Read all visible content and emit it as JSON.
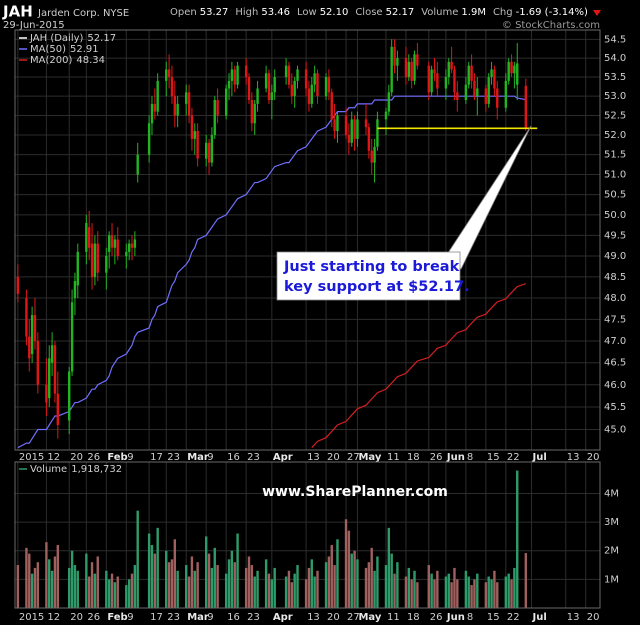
{
  "chart_data": {
    "type": "candlestick",
    "symbol": "JAH",
    "title": "Jarden Corp. NYSE",
    "date": "29-Jun-2015",
    "quote": [
      "Open",
      "53.27",
      "High",
      "53.46",
      "Low",
      "52.10",
      "Close",
      "52.17",
      "Volume",
      "1.9M",
      "Chg",
      "-1.69 (-3.14%)"
    ],
    "credit": "© StockCharts.com",
    "watermark": "www.SharePlanner.com",
    "price_label": "JAH (Daily)",
    "up_color": "#22b522",
    "down_color": "#e01616",
    "log_scale": true,
    "grid": true,
    "ylim": [
      44.55,
      54.75
    ],
    "yticks": [
      {
        "value": 45,
        "label": "45.0"
      },
      45.5,
      {
        "value": 46,
        "label": "46.0"
      },
      46.5,
      {
        "value": 47,
        "label": "47.0"
      },
      47.5,
      {
        "value": 48,
        "label": "48.0"
      },
      48.5,
      {
        "value": 49,
        "label": "49.0"
      },
      49.5,
      {
        "value": 50,
        "label": "50.0"
      },
      50.5,
      {
        "value": 51,
        "label": "51.0"
      },
      51.5,
      {
        "value": 52,
        "label": "52.0"
      },
      52.5,
      {
        "value": 53,
        "label": "53.0"
      },
      53.5,
      {
        "value": 54,
        "label": "54.0"
      },
      54.5
    ],
    "xlim": [
      "2015-01-01",
      "2015-07-25"
    ],
    "xticks": [
      {
        "value": "2015-01-02",
        "label": "2015"
      },
      {
        "value": "2015-01-12",
        "label": "12"
      },
      {
        "value": "2015-01-20",
        "label": "20"
      },
      {
        "value": "2015-01-26",
        "label": "26"
      },
      {
        "value": "2015-02-02",
        "label": "Feb"
      },
      {
        "value": "2015-02-09",
        "label": "9"
      },
      {
        "value": "2015-02-17",
        "label": "17"
      },
      {
        "value": "2015-02-23",
        "label": "23"
      },
      {
        "value": "2015-03-02",
        "label": "Mar"
      },
      {
        "value": "2015-03-09",
        "label": "9"
      },
      {
        "value": "2015-03-16",
        "label": "16"
      },
      {
        "value": "2015-03-23",
        "label": "23"
      },
      {
        "value": "2015-04-01",
        "label": "Apr"
      },
      {
        "value": "2015-04-13",
        "label": "13"
      },
      {
        "value": "2015-04-20",
        "label": "20"
      },
      {
        "value": "2015-04-27",
        "label": "27"
      },
      {
        "value": "2015-05-01",
        "label": "May"
      },
      {
        "value": "2015-05-11",
        "label": "11"
      },
      {
        "value": "2015-05-18",
        "label": "18"
      },
      {
        "value": "2015-05-26",
        "label": "26"
      },
      {
        "value": "2015-06-01",
        "label": "Jun"
      },
      {
        "value": "2015-06-08",
        "label": "8"
      },
      {
        "value": "2015-06-15",
        "label": "15"
      },
      {
        "value": "2015-06-22",
        "label": "22"
      },
      {
        "value": "2015-07-01",
        "label": "Jul"
      },
      {
        "value": "2015-07-13",
        "label": "13"
      },
      {
        "value": "2015-07-20",
        "label": "20"
      }
    ],
    "x": [
      "2015-01-02",
      "2015-01-05",
      "2015-01-06",
      "2015-01-07",
      "2015-01-08",
      "2015-01-09",
      "2015-01-12",
      "2015-01-13",
      "2015-01-14",
      "2015-01-15",
      "2015-01-16",
      "2015-01-20",
      "2015-01-21",
      "2015-01-22",
      "2015-01-23",
      "2015-01-26",
      "2015-01-27",
      "2015-01-28",
      "2015-01-29",
      "2015-01-30",
      "2015-02-02",
      "2015-02-03",
      "2015-02-04",
      "2015-02-05",
      "2015-02-06",
      "2015-02-09",
      "2015-02-10",
      "2015-02-11",
      "2015-02-12",
      "2015-02-13",
      "2015-02-17",
      "2015-02-18",
      "2015-02-19",
      "2015-02-20",
      "2015-02-23",
      "2015-02-24",
      "2015-02-25",
      "2015-02-26",
      "2015-02-27",
      "2015-03-02",
      "2015-03-03",
      "2015-03-04",
      "2015-03-05",
      "2015-03-06",
      "2015-03-09",
      "2015-03-10",
      "2015-03-11",
      "2015-03-12",
      "2015-03-13",
      "2015-03-16",
      "2015-03-17",
      "2015-03-18",
      "2015-03-19",
      "2015-03-20",
      "2015-03-23",
      "2015-03-24",
      "2015-03-25",
      "2015-03-26",
      "2015-03-27",
      "2015-03-30",
      "2015-03-31",
      "2015-04-01",
      "2015-04-02",
      "2015-04-06",
      "2015-04-07",
      "2015-04-08",
      "2015-04-09",
      "2015-04-10",
      "2015-04-13",
      "2015-04-14",
      "2015-04-15",
      "2015-04-16",
      "2015-04-17",
      "2015-04-20",
      "2015-04-21",
      "2015-04-22",
      "2015-04-23",
      "2015-04-24",
      "2015-04-27",
      "2015-04-28",
      "2015-04-29",
      "2015-04-30",
      "2015-05-01",
      "2015-05-04",
      "2015-05-05",
      "2015-05-06",
      "2015-05-07",
      "2015-05-08",
      "2015-05-11",
      "2015-05-12",
      "2015-05-13",
      "2015-05-14",
      "2015-05-15",
      "2015-05-18",
      "2015-05-19",
      "2015-05-20",
      "2015-05-21",
      "2015-05-22",
      "2015-05-26",
      "2015-05-27",
      "2015-05-28",
      "2015-05-29",
      "2015-06-01",
      "2015-06-02",
      "2015-06-03",
      "2015-06-04",
      "2015-06-05",
      "2015-06-08",
      "2015-06-09",
      "2015-06-10",
      "2015-06-11",
      "2015-06-12",
      "2015-06-15",
      "2015-06-16",
      "2015-06-17",
      "2015-06-18",
      "2015-06-19",
      "2015-06-22",
      "2015-06-23",
      "2015-06-24",
      "2015-06-25",
      "2015-06-26",
      "2015-06-29"
    ],
    "open": [
      48.5,
      48.0,
      47.1,
      46.7,
      47.6,
      47.0,
      46.0,
      45.7,
      46.5,
      46.9,
      45.8,
      45.2,
      46.3,
      48.0,
      48.3,
      49.1,
      49.7,
      49.3,
      48.5,
      49.3,
      48.6,
      49.1,
      49.5,
      49.2,
      49.4,
      49.0,
      49.1,
      49.3,
      49.2,
      51.0,
      51.5,
      52.3,
      52.8,
      52.6,
      53.4,
      53.7,
      53.5,
      53.0,
      52.5,
      52.8,
      53.1,
      52.5,
      51.9,
      52.1,
      51.4,
      51.8,
      51.3,
      52.0,
      52.9,
      52.5,
      53.2,
      53.4,
      53.7,
      53.3,
      53.8,
      53.5,
      52.9,
      52.3,
      52.8,
      53.2,
      53.6,
      52.9,
      53.1,
      53.5,
      53.8,
      53.3,
      53.0,
      53.4,
      53.7,
      53.2,
      52.8,
      53.3,
      53.6,
      53.0,
      53.5,
      53.1,
      52.4,
      52.1,
      52.5,
      52.0,
      51.8,
      52.4,
      51.9,
      52.4,
      52.2,
      51.6,
      51.3,
      51.7,
      52.4,
      52.6,
      53.1,
      54.3,
      53.8,
      54.0,
      53.5,
      53.9,
      53.4,
      54.1,
      53.8,
      53.1,
      53.7,
      53.6,
      53.2,
      53.5,
      53.9,
      53.7,
      53.1,
      52.9,
      53.3,
      53.8,
      53.4,
      53.0,
      53.2,
      52.8,
      53.5,
      53.7,
      53.2,
      52.7,
      53.4,
      53.9,
      53.6,
      53.3,
      53.27
    ],
    "high": [
      48.8,
      48.2,
      47.5,
      47.8,
      48.0,
      47.2,
      46.6,
      46.9,
      47.2,
      47.0,
      46.3,
      46.4,
      48.2,
      48.6,
      49.3,
      50.0,
      50.1,
      49.8,
      49.5,
      49.6,
      49.2,
      49.6,
      49.8,
      49.5,
      49.7,
      49.3,
      49.4,
      49.5,
      49.6,
      51.8,
      52.5,
      53.0,
      53.2,
      53.6,
      53.9,
      54.1,
      53.8,
      53.4,
      53.0,
      53.3,
      53.3,
      52.7,
      52.3,
      52.3,
      52.0,
      51.9,
      52.2,
      53.0,
      53.2,
      53.3,
      53.6,
      53.9,
      53.8,
      53.9,
      54.0,
      53.6,
      53.1,
      52.9,
      53.4,
      53.8,
      53.7,
      53.3,
      53.7,
      54.0,
      53.9,
      53.6,
      53.5,
      53.8,
      53.9,
      53.4,
      53.5,
      53.8,
      53.7,
      53.6,
      53.7,
      53.2,
      52.8,
      52.6,
      52.7,
      52.3,
      52.6,
      52.5,
      52.6,
      52.8,
      52.3,
      51.9,
      51.9,
      52.6,
      52.7,
      53.3,
      54.5,
      54.5,
      54.2,
      54.3,
      54.1,
      54.0,
      54.2,
      54.4,
      53.9,
      53.8,
      54.0,
      53.9,
      53.7,
      54.0,
      54.3,
      53.8,
      53.4,
      53.5,
      53.9,
      54.1,
      53.6,
      53.5,
      53.3,
      53.6,
      53.9,
      53.8,
      53.4,
      53.6,
      54.0,
      54.1,
      53.9,
      54.4,
      53.46
    ],
    "low": [
      47.9,
      46.9,
      46.3,
      46.5,
      46.8,
      45.8,
      45.3,
      45.5,
      46.2,
      45.6,
      44.8,
      44.9,
      46.2,
      47.6,
      48.0,
      48.8,
      48.9,
      48.2,
      48.3,
      48.4,
      48.2,
      48.7,
      49.0,
      48.8,
      48.9,
      48.7,
      48.9,
      48.9,
      49.0,
      50.8,
      51.3,
      52.0,
      52.4,
      52.5,
      53.0,
      53.2,
      52.8,
      52.2,
      52.2,
      52.5,
      52.3,
      51.6,
      51.5,
      51.2,
      51.2,
      51.0,
      51.2,
      51.9,
      52.3,
      52.4,
      52.9,
      53.0,
      53.1,
      53.2,
      53.3,
      52.8,
      52.1,
      52.0,
      52.6,
      53.1,
      52.8,
      52.4,
      52.9,
      53.3,
      53.2,
      52.8,
      52.7,
      53.2,
      53.0,
      52.6,
      52.7,
      53.1,
      52.8,
      52.9,
      52.9,
      52.2,
      51.9,
      51.8,
      51.9,
      51.5,
      51.7,
      51.6,
      51.7,
      52.0,
      51.4,
      51.0,
      50.8,
      51.6,
      52.0,
      52.5,
      53.0,
      53.6,
      53.4,
      53.3,
      53.4,
      53.2,
      53.3,
      53.7,
      52.9,
      53.0,
      53.4,
      53.0,
      52.9,
      53.3,
      53.6,
      52.9,
      52.6,
      52.8,
      53.2,
      53.2,
      52.9,
      52.5,
      52.6,
      52.7,
      53.3,
      53.0,
      52.4,
      52.6,
      53.3,
      53.5,
      53.2,
      52.9,
      52.1
    ],
    "close": [
      48.1,
      47.1,
      46.6,
      47.6,
      47.0,
      46.0,
      45.6,
      46.6,
      46.9,
      45.8,
      45.1,
      46.3,
      47.9,
      48.4,
      49.1,
      49.8,
      49.2,
      48.5,
      49.3,
      48.6,
      49.0,
      49.5,
      49.2,
      49.4,
      49.0,
      49.1,
      49.3,
      49.2,
      49.4,
      51.5,
      52.3,
      52.8,
      52.6,
      53.4,
      53.7,
      53.5,
      53.0,
      52.5,
      52.8,
      53.1,
      52.5,
      51.9,
      52.1,
      51.4,
      51.8,
      51.3,
      52.0,
      52.9,
      52.5,
      53.2,
      53.4,
      53.7,
      53.3,
      53.8,
      53.5,
      52.9,
      52.3,
      52.8,
      53.2,
      53.6,
      52.9,
      53.1,
      53.5,
      53.8,
      53.3,
      53.0,
      53.4,
      53.7,
      53.2,
      52.8,
      53.3,
      53.6,
      53.0,
      53.5,
      53.1,
      52.4,
      52.1,
      52.5,
      52.0,
      51.8,
      52.4,
      51.9,
      52.4,
      52.2,
      51.6,
      51.3,
      51.7,
      52.4,
      52.6,
      53.1,
      54.3,
      53.8,
      54.0,
      53.5,
      53.9,
      53.4,
      54.1,
      53.8,
      53.1,
      53.7,
      53.6,
      53.2,
      53.5,
      53.9,
      53.7,
      53.1,
      52.9,
      53.3,
      53.8,
      53.4,
      53.0,
      53.2,
      52.8,
      53.5,
      53.7,
      53.2,
      52.7,
      53.4,
      53.9,
      53.6,
      53.8,
      53.86,
      52.17
    ],
    "overlays": [
      {
        "name": "MA(50)",
        "color": "#6f6fff",
        "values": [
          44.6,
          44.7,
          44.7,
          44.8,
          44.9,
          45.0,
          45.0,
          45.1,
          45.2,
          45.3,
          45.3,
          45.4,
          45.5,
          45.6,
          45.6,
          45.7,
          45.8,
          45.9,
          45.9,
          46.0,
          46.1,
          46.2,
          46.4,
          46.5,
          46.6,
          46.7,
          46.8,
          46.9,
          47.1,
          47.2,
          47.3,
          47.5,
          47.6,
          47.8,
          47.9,
          48.1,
          48.3,
          48.4,
          48.6,
          48.8,
          48.9,
          49.1,
          49.2,
          49.4,
          49.5,
          49.6,
          49.7,
          49.8,
          49.9,
          50.0,
          50.1,
          50.2,
          50.3,
          50.4,
          50.5,
          50.6,
          50.7,
          50.8,
          50.8,
          50.9,
          51.0,
          51.1,
          51.2,
          51.3,
          51.3,
          51.4,
          51.5,
          51.6,
          51.7,
          51.8,
          51.9,
          52.0,
          52.1,
          52.2,
          52.3,
          52.4,
          52.5,
          52.6,
          52.6,
          52.7,
          52.7,
          52.7,
          52.8,
          52.8,
          52.8,
          52.8,
          52.9,
          52.9,
          52.9,
          52.9,
          52.9,
          53.0,
          53.0,
          53.0,
          53.0,
          53.0,
          53.0,
          53.0,
          53.0,
          53.0,
          53.0,
          53.0,
          53.0,
          53.0,
          53.0,
          53.0,
          53.0,
          53.0,
          53.0,
          53.0,
          53.0,
          53.0,
          53.0,
          53.0,
          53.0,
          53.0,
          53.0,
          53.0,
          53.0,
          53.0,
          53.0,
          52.95,
          52.91
        ]
      },
      {
        "name": "MA(200)",
        "color": "#d42020",
        "values": [
          null,
          null,
          null,
          null,
          null,
          null,
          null,
          null,
          null,
          null,
          null,
          null,
          null,
          null,
          null,
          null,
          null,
          null,
          null,
          null,
          null,
          null,
          null,
          null,
          null,
          null,
          null,
          null,
          null,
          null,
          null,
          null,
          null,
          null,
          null,
          null,
          null,
          null,
          null,
          null,
          null,
          null,
          null,
          null,
          null,
          null,
          null,
          null,
          null,
          null,
          null,
          null,
          null,
          null,
          null,
          null,
          null,
          null,
          null,
          null,
          null,
          null,
          null,
          null,
          null,
          null,
          null,
          null,
          null,
          null,
          44.6,
          44.67,
          44.74,
          44.82,
          44.89,
          44.96,
          45.03,
          45.1,
          45.18,
          45.25,
          45.32,
          45.39,
          45.46,
          45.54,
          45.61,
          45.68,
          45.75,
          45.82,
          45.9,
          45.97,
          46.04,
          46.11,
          46.18,
          46.26,
          46.33,
          46.4,
          46.47,
          46.54,
          46.62,
          46.69,
          46.76,
          46.83,
          46.9,
          46.98,
          47.05,
          47.12,
          47.19,
          47.26,
          47.34,
          47.41,
          47.48,
          47.55,
          47.62,
          47.7,
          47.77,
          47.84,
          47.91,
          47.98,
          48.06,
          48.13,
          48.2,
          48.27,
          48.34
        ]
      }
    ],
    "annotation": {
      "text": [
        "Just starting to break",
        "key support at $52.17."
      ],
      "support_level": 52.17,
      "support_from": "2015-05-08",
      "support_to": "2015-07-03",
      "support_color": "#f2e600"
    },
    "volume": {
      "name": "Volume",
      "legend_value": "1,918,732",
      "up_color": "#2e9c6a",
      "down_color": "#a0605e",
      "ylim": [
        0,
        5100000
      ],
      "yticks": [
        {
          "value": 1000000,
          "label": "1M"
        },
        {
          "value": 2000000,
          "label": "2M"
        },
        {
          "value": 3000000,
          "label": "3M"
        },
        {
          "value": 4000000,
          "label": "4M"
        }
      ],
      "values": [
        1500000,
        2100000,
        1900000,
        1200000,
        1400000,
        1600000,
        2300000,
        1700000,
        1300000,
        1800000,
        2200000,
        1400000,
        2000000,
        1500000,
        1300000,
        1900000,
        1100000,
        1600000,
        1200000,
        1800000,
        1300000,
        1000000,
        1200000,
        900000,
        1100000,
        800000,
        1000000,
        1200000,
        1500000,
        3400000,
        2600000,
        2200000,
        1900000,
        2800000,
        2000000,
        1600000,
        1700000,
        2400000,
        1300000,
        1500000,
        1100000,
        1800000,
        1300000,
        1600000,
        2500000,
        1900000,
        1400000,
        2100000,
        1500000,
        1200000,
        1700000,
        2000000,
        1600000,
        2600000,
        1400000,
        1800000,
        1500000,
        1100000,
        1300000,
        1700000,
        1200000,
        1000000,
        1400000,
        1100000,
        1300000,
        900000,
        1200000,
        1500000,
        1000000,
        1400000,
        1700000,
        1100000,
        1300000,
        1600000,
        1800000,
        2200000,
        1500000,
        2400000,
        3100000,
        2700000,
        1900000,
        2000000,
        1700000,
        1400000,
        1600000,
        2100000,
        1300000,
        1800000,
        1500000,
        2800000,
        1900000,
        1200000,
        1600000,
        1100000,
        1400000,
        1000000,
        1300000,
        900000,
        1500000,
        1200000,
        1000000,
        1300000,
        1100000,
        1200000,
        900000,
        1400000,
        1000000,
        1300000,
        1100000,
        800000,
        1000000,
        1200000,
        900000,
        1100000,
        1000000,
        1300000,
        900000,
        1100000,
        1200000,
        1000000,
        1400000,
        4800000,
        1918732
      ]
    }
  }
}
